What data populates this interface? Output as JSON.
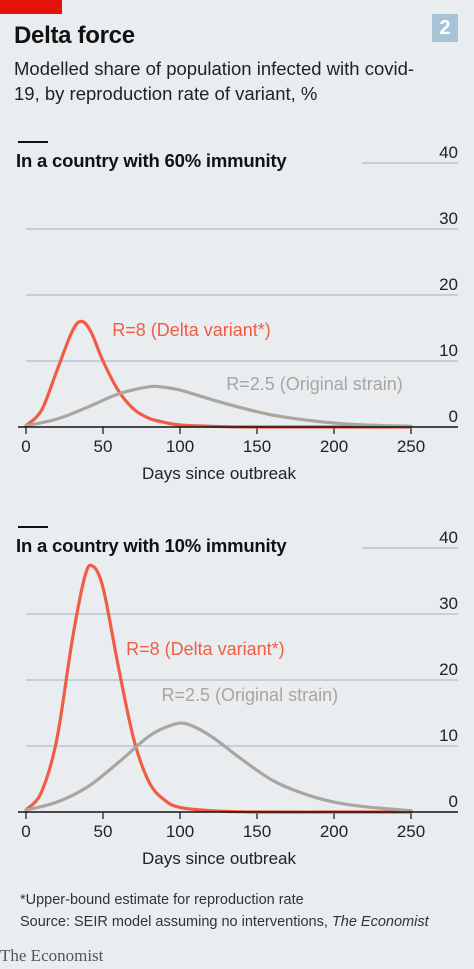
{
  "header": {
    "title": "Delta force",
    "subtitle": "Modelled share of population infected with covid-19, by reproduction rate of variant, %",
    "chart_number": "2"
  },
  "colors": {
    "delta": "#f05d44",
    "original": "#aaa59f",
    "grid": "#9db3c2",
    "axis": "#121212"
  },
  "chart_data": [
    {
      "type": "line",
      "title": "In a country with 60% immunity",
      "xlabel": "Days since outbreak",
      "ylabel": "",
      "xlim": [
        0,
        250
      ],
      "ylim": [
        0,
        40
      ],
      "x_ticks": [
        0,
        50,
        100,
        150,
        200,
        250
      ],
      "y_ticks": [
        0,
        10,
        20,
        30,
        40
      ],
      "y_tick_labels": [
        "0",
        "10",
        "20",
        "30",
        "40"
      ],
      "grid": true,
      "series": [
        {
          "name": "R=8 (Delta variant*)",
          "color": "#f05d44",
          "x": [
            0,
            10,
            20,
            30,
            36,
            42,
            50,
            60,
            70,
            80,
            90,
            100,
            120,
            150,
            200,
            250
          ],
          "y": [
            0.2,
            2.5,
            8.5,
            14.5,
            16,
            14.5,
            10,
            5.5,
            2.7,
            1.3,
            0.7,
            0.3,
            0.1,
            0,
            0,
            0
          ]
        },
        {
          "name": "R=2.5 (Original strain)",
          "color": "#aaa59f",
          "x": [
            0,
            20,
            40,
            60,
            80,
            90,
            100,
            120,
            140,
            160,
            180,
            200,
            220,
            250
          ],
          "y": [
            0.2,
            1.2,
            3,
            5,
            6.1,
            6,
            5.6,
            4.2,
            2.9,
            1.8,
            1.1,
            0.6,
            0.3,
            0.1
          ]
        }
      ],
      "annotations": [
        {
          "text": "R=8 (Delta variant*)",
          "series": 0,
          "x": 56,
          "y": 13.8
        },
        {
          "text": "R=2.5 (Original strain)",
          "series": 1,
          "x": 130,
          "y": 5.6
        }
      ]
    },
    {
      "type": "line",
      "title": "In a country with 10% immunity",
      "xlabel": "Days since outbreak",
      "ylabel": "",
      "xlim": [
        0,
        250
      ],
      "ylim": [
        0,
        40
      ],
      "x_ticks": [
        0,
        50,
        100,
        150,
        200,
        250
      ],
      "y_ticks": [
        0,
        10,
        20,
        30,
        40
      ],
      "y_tick_labels": [
        "0",
        "10",
        "20",
        "30",
        "40"
      ],
      "grid": true,
      "series": [
        {
          "name": "R=8 (Delta variant*)",
          "color": "#f05d44",
          "x": [
            0,
            10,
            20,
            30,
            38,
            43,
            50,
            60,
            70,
            80,
            90,
            100,
            120,
            150,
            200,
            250
          ],
          "y": [
            0.3,
            3,
            11,
            26,
            35.5,
            37.3,
            34,
            22,
            11,
            4.5,
            1.8,
            0.7,
            0.2,
            0,
            0,
            0
          ]
        },
        {
          "name": "R=2.5 (Original strain)",
          "color": "#aaa59f",
          "x": [
            0,
            20,
            40,
            60,
            80,
            95,
            105,
            120,
            140,
            160,
            180,
            200,
            220,
            250
          ],
          "y": [
            0.3,
            1.5,
            3.8,
            7.5,
            11.5,
            13.2,
            13.3,
            11.5,
            8,
            4.8,
            2.8,
            1.5,
            0.8,
            0.2
          ]
        }
      ],
      "annotations": [
        {
          "text": "R=8 (Delta variant*)",
          "series": 0,
          "x": 65,
          "y": 23.8
        },
        {
          "text": "R=2.5 (Original strain)",
          "series": 1,
          "x": 88,
          "y": 16.8
        }
      ]
    }
  ],
  "footnote": "*Upper-bound estimate for reproduction rate",
  "source_prefix": "Source: SEIR model assuming no interventions, ",
  "source_italic": "The Economist",
  "brand": "The Economist"
}
